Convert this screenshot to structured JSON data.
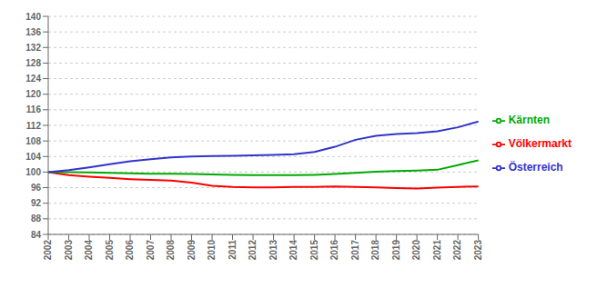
{
  "chart_data": {
    "type": "line",
    "categories": [
      "2002",
      "2003",
      "2004",
      "2005",
      "2006",
      "2007",
      "2008",
      "2009",
      "2010",
      "2011",
      "2012",
      "2013",
      "2014",
      "2015",
      "2016",
      "2017",
      "2018",
      "2019",
      "2020",
      "2021",
      "2022",
      "2023"
    ],
    "series": [
      {
        "name": "Völkermarkt",
        "color": "#ff0000",
        "values": [
          100.0,
          99.2,
          98.8,
          98.5,
          98.2,
          98.0,
          97.8,
          97.3,
          96.5,
          96.2,
          96.1,
          96.1,
          96.2,
          96.2,
          96.3,
          96.2,
          96.1,
          95.9,
          95.8,
          96.0,
          96.2,
          96.3
        ]
      },
      {
        "name": "Kärnten",
        "color": "#00aa00",
        "values": [
          100.0,
          100.0,
          99.9,
          99.8,
          99.7,
          99.6,
          99.6,
          99.5,
          99.4,
          99.3,
          99.2,
          99.2,
          99.2,
          99.3,
          99.5,
          99.8,
          100.1,
          100.3,
          100.4,
          100.6,
          101.8,
          103.0
        ]
      },
      {
        "name": "Österreich",
        "color": "#3333cc",
        "values": [
          100.0,
          100.5,
          101.2,
          102.0,
          102.8,
          103.3,
          103.8,
          104.0,
          104.1,
          104.2,
          104.3,
          104.4,
          104.6,
          105.2,
          106.5,
          108.3,
          109.3,
          109.8,
          110.0,
          110.5,
          111.5,
          113.0
        ]
      }
    ],
    "ylim": [
      84,
      140
    ],
    "yticks": [
      84,
      88,
      92,
      96,
      100,
      104,
      108,
      112,
      116,
      120,
      124,
      128,
      132,
      136,
      140
    ],
    "grid": "y",
    "legend": "right"
  }
}
